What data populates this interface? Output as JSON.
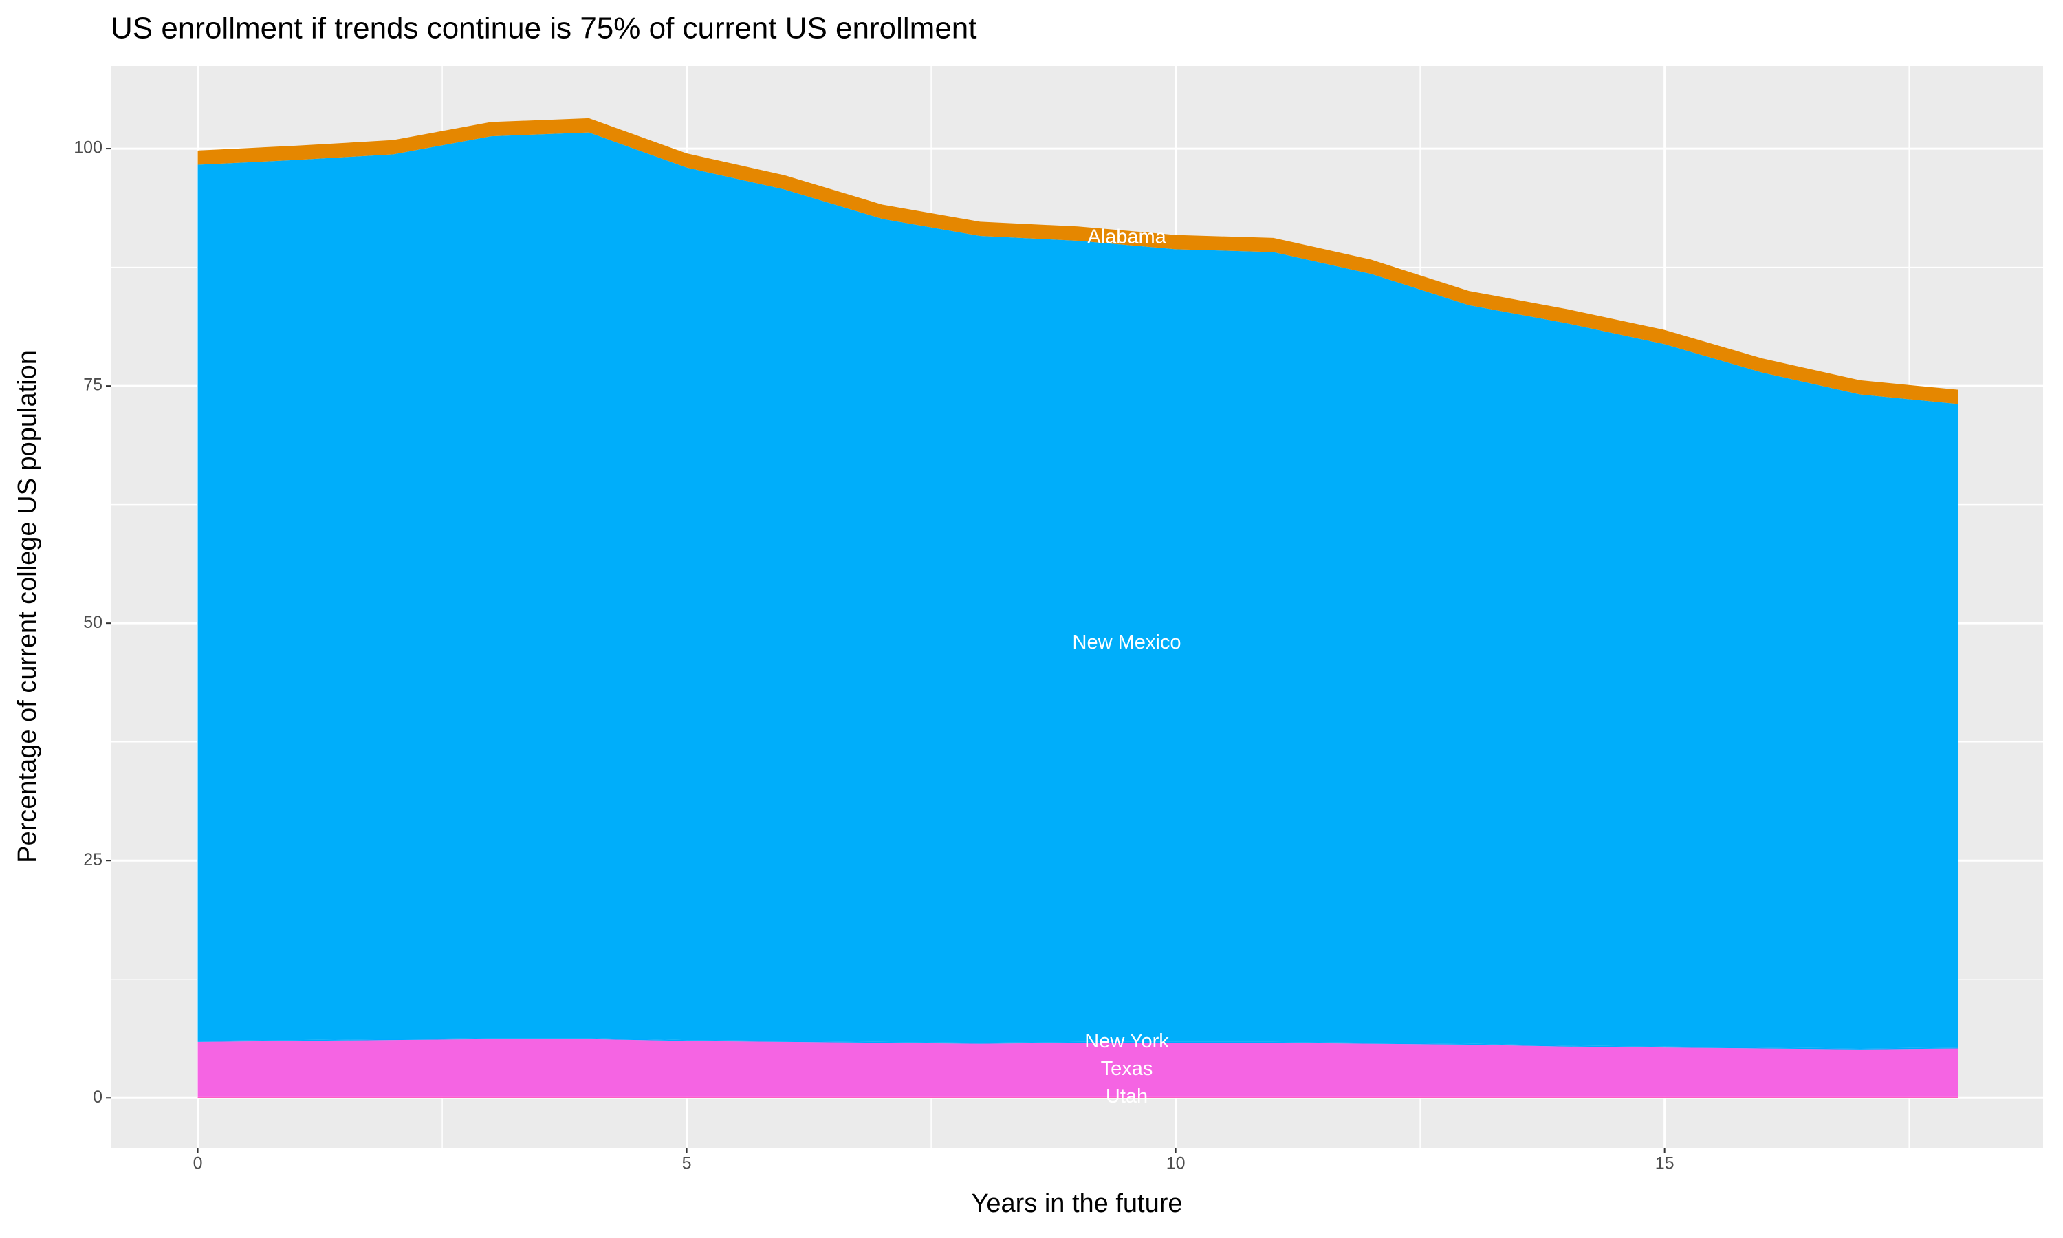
{
  "chart_data": {
    "type": "stacked-area",
    "title": "US enrollment if trends continue is 75% of current US enrollment",
    "x_label": "Years in the future",
    "y_label": "Percentage of current college US population",
    "x": [
      0,
      1,
      2,
      3,
      4,
      5,
      6,
      7,
      8,
      9,
      10,
      11,
      12,
      13,
      14,
      15,
      16,
      17,
      18
    ],
    "series": [
      {
        "name": "Utah",
        "color": "#FF61C3",
        "values": [
          0.1,
          0.1,
          0.1,
          0.1,
          0.1,
          0.1,
          0.1,
          0.1,
          0.1,
          0.1,
          0.1,
          0.1,
          0.1,
          0.1,
          0.1,
          0.1,
          0.1,
          0.1,
          0.1
        ]
      },
      {
        "name": "Texas",
        "color": "#F564E3",
        "values": [
          5.8,
          5.9,
          6.0,
          6.1,
          6.1,
          5.9,
          5.8,
          5.7,
          5.6,
          5.7,
          5.7,
          5.7,
          5.6,
          5.5,
          5.3,
          5.2,
          5.1,
          5.0,
          5.1
        ]
      },
      {
        "name": "New York",
        "color": "#00A9FF",
        "values": [
          0.1,
          0.1,
          0.1,
          0.1,
          0.1,
          0.1,
          0.1,
          0.1,
          0.1,
          0.1,
          0.1,
          0.1,
          0.1,
          0.1,
          0.1,
          0.1,
          0.1,
          0.1,
          0.1
        ]
      },
      {
        "name": "New Mexico",
        "color": "#00AEFA",
        "values": [
          92.3,
          92.7,
          93.2,
          95.0,
          95.4,
          91.9,
          89.7,
          86.7,
          85.0,
          84.4,
          83.5,
          83.2,
          81.0,
          77.8,
          76.1,
          74.0,
          71.1,
          68.9,
          67.8
        ]
      },
      {
        "name": "Alabama",
        "color": "#E58700",
        "values": [
          1.5,
          1.5,
          1.5,
          1.5,
          1.5,
          1.5,
          1.5,
          1.5,
          1.5,
          1.5,
          1.5,
          1.5,
          1.5,
          1.5,
          1.5,
          1.5,
          1.5,
          1.5,
          1.5
        ]
      }
    ],
    "xlim": [
      -0.89,
      18.87
    ],
    "ylim": [
      -5.27,
      108.7
    ],
    "xticks": [
      0,
      5,
      10,
      15
    ],
    "yticks": [
      0,
      25,
      50,
      75,
      100
    ],
    "grid": true
  }
}
